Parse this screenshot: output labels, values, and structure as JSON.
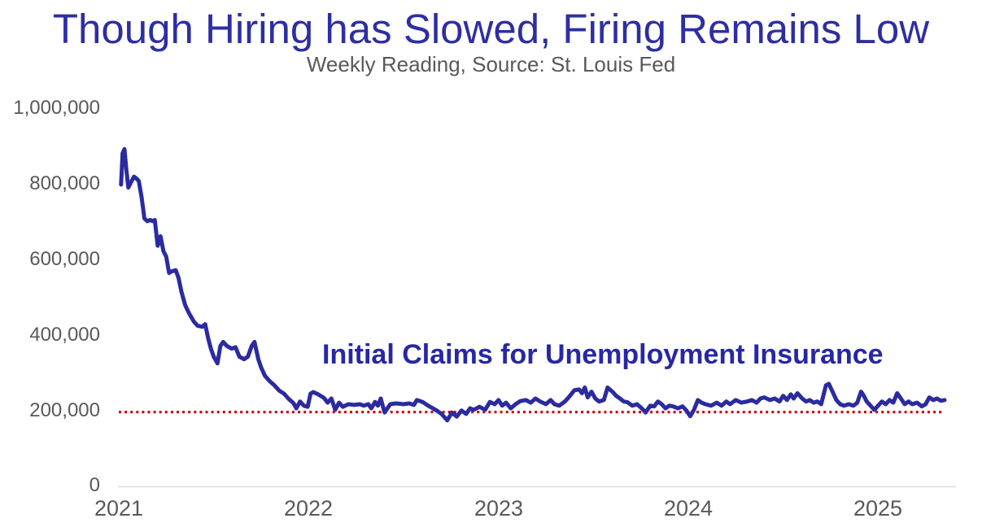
{
  "title": "Though Hiring has Slowed, Firing Remains Low",
  "subtitle": "Weekly Reading, Source: St. Louis Fed",
  "annotation": "Initial Claims for Unemployment Insurance",
  "colors": {
    "title_blue": "#2E2EA2",
    "line_blue": "#2B2BA0",
    "annotation_blue": "#2727A5",
    "reference_red": "#CC0000",
    "axis_text_gray": "#595959",
    "axis_line_gray": "#D9D9D9",
    "background": "#FFFFFF"
  },
  "chart_data": {
    "type": "line",
    "title": "Though Hiring has Slowed, Firing Remains Low",
    "subtitle": "Weekly Reading, Source: St. Louis Fed",
    "xlabel": "",
    "ylabel": "",
    "x_ticks": [
      "2021",
      "2022",
      "2023",
      "2024",
      "2025"
    ],
    "y_ticks_top_to_bottom": [
      "1,000,000",
      "800,000",
      "600,000",
      "400,000",
      "200,000",
      "0"
    ],
    "xlim": [
      2021.0,
      2025.35
    ],
    "ylim": [
      0,
      1000000
    ],
    "grid": false,
    "legend_position": "none",
    "annotation": {
      "text": "Initial Claims for Unemployment Insurance",
      "anchor_x": 2023.08,
      "anchor_y": 370000
    },
    "reference_line": {
      "value": 200000,
      "color": "#CC0000",
      "style": "dotted"
    },
    "series": [
      {
        "name": "Initial Claims for Unemployment Insurance",
        "color": "#2B2BA0",
        "stroke_width": 5,
        "frequency": "weekly",
        "points": [
          [
            2021.012,
            803000
          ],
          [
            2021.02,
            886000
          ],
          [
            2021.03,
            897000
          ],
          [
            2021.04,
            842000
          ],
          [
            2021.05,
            795000
          ],
          [
            2021.065,
            810000
          ],
          [
            2021.08,
            824000
          ],
          [
            2021.09,
            820000
          ],
          [
            2021.105,
            813000
          ],
          [
            2021.12,
            770000
          ],
          [
            2021.135,
            713000
          ],
          [
            2021.15,
            706000
          ],
          [
            2021.165,
            709000
          ],
          [
            2021.18,
            706000
          ],
          [
            2021.19,
            709000
          ],
          [
            2021.205,
            641000
          ],
          [
            2021.22,
            666000
          ],
          [
            2021.235,
            627000
          ],
          [
            2021.25,
            612000
          ],
          [
            2021.265,
            569000
          ],
          [
            2021.28,
            573000
          ],
          [
            2021.3,
            576000
          ],
          [
            2021.315,
            555000
          ],
          [
            2021.33,
            519000
          ],
          [
            2021.35,
            483000
          ],
          [
            2021.37,
            462000
          ],
          [
            2021.395,
            440000
          ],
          [
            2021.415,
            429000
          ],
          [
            2021.44,
            426000
          ],
          [
            2021.455,
            433000
          ],
          [
            2021.47,
            397000
          ],
          [
            2021.485,
            368000
          ],
          [
            2021.5,
            347000
          ],
          [
            2021.52,
            329000
          ],
          [
            2021.535,
            375000
          ],
          [
            2021.55,
            386000
          ],
          [
            2021.57,
            375000
          ],
          [
            2021.595,
            368000
          ],
          [
            2021.615,
            372000
          ],
          [
            2021.635,
            347000
          ],
          [
            2021.66,
            340000
          ],
          [
            2021.68,
            347000
          ],
          [
            2021.7,
            375000
          ],
          [
            2021.715,
            386000
          ],
          [
            2021.735,
            340000
          ],
          [
            2021.75,
            318000
          ],
          [
            2021.77,
            296000
          ],
          [
            2021.795,
            282000
          ],
          [
            2021.82,
            271000
          ],
          [
            2021.845,
            257000
          ],
          [
            2021.87,
            249000
          ],
          [
            2021.895,
            235000
          ],
          [
            2021.92,
            224000
          ],
          [
            2021.935,
            210000
          ],
          [
            2021.955,
            228000
          ],
          [
            2021.975,
            217000
          ],
          [
            2021.995,
            214000
          ],
          [
            2022.01,
            249000
          ],
          [
            2022.025,
            253000
          ],
          [
            2022.05,
            247000
          ],
          [
            2022.08,
            238000
          ],
          [
            2022.1,
            225000
          ],
          [
            2022.12,
            236000
          ],
          [
            2022.14,
            206000
          ],
          [
            2022.16,
            225000
          ],
          [
            2022.18,
            214000
          ],
          [
            2022.21,
            221000
          ],
          [
            2022.24,
            219000
          ],
          [
            2022.27,
            221000
          ],
          [
            2022.29,
            217000
          ],
          [
            2022.315,
            221000
          ],
          [
            2022.33,
            210000
          ],
          [
            2022.35,
            227000
          ],
          [
            2022.365,
            217000
          ],
          [
            2022.38,
            236000
          ],
          [
            2022.4,
            199000
          ],
          [
            2022.43,
            221000
          ],
          [
            2022.46,
            223000
          ],
          [
            2022.5,
            221000
          ],
          [
            2022.53,
            223000
          ],
          [
            2022.555,
            219000
          ],
          [
            2022.57,
            232000
          ],
          [
            2022.6,
            227000
          ],
          [
            2022.63,
            217000
          ],
          [
            2022.675,
            204000
          ],
          [
            2022.7,
            195000
          ],
          [
            2022.73,
            178000
          ],
          [
            2022.755,
            199000
          ],
          [
            2022.78,
            188000
          ],
          [
            2022.805,
            204000
          ],
          [
            2022.83,
            195000
          ],
          [
            2022.85,
            210000
          ],
          [
            2022.87,
            206000
          ],
          [
            2022.9,
            214000
          ],
          [
            2022.93,
            206000
          ],
          [
            2022.955,
            227000
          ],
          [
            2022.98,
            221000
          ],
          [
            2023.0,
            232000
          ],
          [
            2023.02,
            217000
          ],
          [
            2023.04,
            225000
          ],
          [
            2023.065,
            210000
          ],
          [
            2023.09,
            221000
          ],
          [
            2023.115,
            229000
          ],
          [
            2023.145,
            232000
          ],
          [
            2023.17,
            225000
          ],
          [
            2023.195,
            236000
          ],
          [
            2023.22,
            228000
          ],
          [
            2023.25,
            221000
          ],
          [
            2023.275,
            232000
          ],
          [
            2023.295,
            221000
          ],
          [
            2023.32,
            217000
          ],
          [
            2023.35,
            228000
          ],
          [
            2023.37,
            239000
          ],
          [
            2023.4,
            258000
          ],
          [
            2023.425,
            260000
          ],
          [
            2023.44,
            250000
          ],
          [
            2023.455,
            265000
          ],
          [
            2023.47,
            239000
          ],
          [
            2023.49,
            254000
          ],
          [
            2023.51,
            236000
          ],
          [
            2023.53,
            228000
          ],
          [
            2023.555,
            232000
          ],
          [
            2023.575,
            265000
          ],
          [
            2023.6,
            254000
          ],
          [
            2023.62,
            243000
          ],
          [
            2023.64,
            236000
          ],
          [
            2023.66,
            228000
          ],
          [
            2023.68,
            226000
          ],
          [
            2023.705,
            217000
          ],
          [
            2023.73,
            221000
          ],
          [
            2023.755,
            210000
          ],
          [
            2023.775,
            199000
          ],
          [
            2023.8,
            217000
          ],
          [
            2023.82,
            215000
          ],
          [
            2023.84,
            228000
          ],
          [
            2023.86,
            221000
          ],
          [
            2023.88,
            210000
          ],
          [
            2023.9,
            217000
          ],
          [
            2023.92,
            215000
          ],
          [
            2023.945,
            210000
          ],
          [
            2023.97,
            215000
          ],
          [
            2023.99,
            204000
          ],
          [
            2024.01,
            189000
          ],
          [
            2024.03,
            206000
          ],
          [
            2024.05,
            232000
          ],
          [
            2024.07,
            225000
          ],
          [
            2024.09,
            221000
          ],
          [
            2024.12,
            217000
          ],
          [
            2024.15,
            225000
          ],
          [
            2024.175,
            217000
          ],
          [
            2024.2,
            228000
          ],
          [
            2024.22,
            221000
          ],
          [
            2024.25,
            232000
          ],
          [
            2024.28,
            225000
          ],
          [
            2024.31,
            228000
          ],
          [
            2024.335,
            232000
          ],
          [
            2024.36,
            225000
          ],
          [
            2024.38,
            236000
          ],
          [
            2024.4,
            239000
          ],
          [
            2024.43,
            232000
          ],
          [
            2024.455,
            236000
          ],
          [
            2024.48,
            228000
          ],
          [
            2024.5,
            243000
          ],
          [
            2024.52,
            232000
          ],
          [
            2024.54,
            247000
          ],
          [
            2024.555,
            236000
          ],
          [
            2024.575,
            250000
          ],
          [
            2024.6,
            236000
          ],
          [
            2024.62,
            228000
          ],
          [
            2024.64,
            232000
          ],
          [
            2024.66,
            225000
          ],
          [
            2024.68,
            228000
          ],
          [
            2024.7,
            221000
          ],
          [
            2024.725,
            271000
          ],
          [
            2024.74,
            275000
          ],
          [
            2024.76,
            254000
          ],
          [
            2024.78,
            232000
          ],
          [
            2024.8,
            221000
          ],
          [
            2024.82,
            217000
          ],
          [
            2024.845,
            221000
          ],
          [
            2024.87,
            217000
          ],
          [
            2024.89,
            225000
          ],
          [
            2024.91,
            254000
          ],
          [
            2024.925,
            243000
          ],
          [
            2024.94,
            228000
          ],
          [
            2024.96,
            217000
          ],
          [
            2024.98,
            206000
          ],
          [
            2025.0,
            217000
          ],
          [
            2025.02,
            228000
          ],
          [
            2025.04,
            221000
          ],
          [
            2025.06,
            232000
          ],
          [
            2025.08,
            225000
          ],
          [
            2025.1,
            250000
          ],
          [
            2025.12,
            236000
          ],
          [
            2025.14,
            221000
          ],
          [
            2025.16,
            228000
          ],
          [
            2025.18,
            221000
          ],
          [
            2025.205,
            225000
          ],
          [
            2025.23,
            215000
          ],
          [
            2025.25,
            221000
          ],
          [
            2025.27,
            239000
          ],
          [
            2025.29,
            232000
          ],
          [
            2025.31,
            236000
          ],
          [
            2025.33,
            230000
          ],
          [
            2025.35,
            232000
          ]
        ]
      }
    ]
  }
}
